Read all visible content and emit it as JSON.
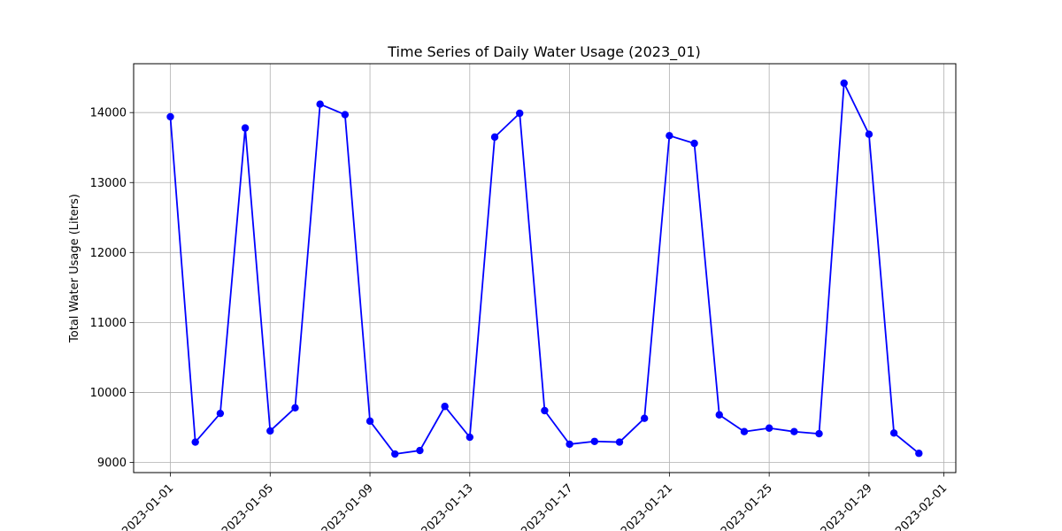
{
  "chart_data": {
    "type": "line",
    "title": "Time Series of Daily Water Usage (2023_01)",
    "xlabel": "",
    "ylabel": "Total Water Usage (Liters)",
    "grid": true,
    "legend": "none",
    "xlim": [
      "2022-12-29",
      "2023-02-01"
    ],
    "ylim": [
      8850,
      14700
    ],
    "x_ticks": [
      "2023-01-01",
      "2023-01-05",
      "2023-01-09",
      "2023-01-13",
      "2023-01-17",
      "2023-01-21",
      "2023-01-25",
      "2023-01-29",
      "2023-02-01"
    ],
    "y_ticks": [
      9000,
      10000,
      11000,
      12000,
      13000,
      14000
    ],
    "x_tick_rotation_deg": 45,
    "series": [
      {
        "color": "#0000ff",
        "marker": "circle",
        "x": [
          "2023-01-01",
          "2023-01-02",
          "2023-01-03",
          "2023-01-04",
          "2023-01-05",
          "2023-01-06",
          "2023-01-07",
          "2023-01-08",
          "2023-01-09",
          "2023-01-10",
          "2023-01-11",
          "2023-01-12",
          "2023-01-13",
          "2023-01-14",
          "2023-01-15",
          "2023-01-16",
          "2023-01-17",
          "2023-01-18",
          "2023-01-19",
          "2023-01-20",
          "2023-01-21",
          "2023-01-22",
          "2023-01-23",
          "2023-01-24",
          "2023-01-25",
          "2023-01-26",
          "2023-01-27",
          "2023-01-28",
          "2023-01-29",
          "2023-01-30",
          "2023-01-31"
        ],
        "values": [
          13940,
          9290,
          9700,
          13780,
          9450,
          9780,
          14120,
          13970,
          9590,
          9120,
          9170,
          9800,
          9360,
          13650,
          13990,
          9740,
          9260,
          9300,
          9290,
          9630,
          13670,
          13560,
          9680,
          9440,
          9490,
          9440,
          9410,
          14420,
          13690,
          9420,
          9130
        ]
      }
    ]
  }
}
